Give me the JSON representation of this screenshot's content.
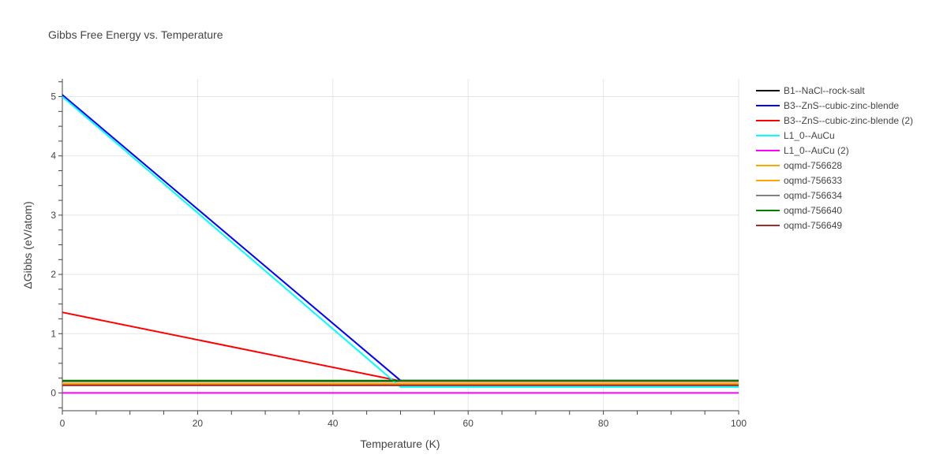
{
  "chart_data": {
    "type": "line",
    "title": "Gibbs Free Energy vs. Temperature",
    "xlabel": "Temperature (K)",
    "ylabel": "ΔGibbs (eV/atom)",
    "xlim": [
      0,
      100
    ],
    "ylim": [
      -0.3,
      5.3
    ],
    "xticks": [
      0,
      20,
      40,
      60,
      80,
      100
    ],
    "yticks": [
      0,
      1,
      2,
      3,
      4,
      5
    ],
    "grid": true,
    "legend_position": "right",
    "series": [
      {
        "name": "B1--NaCl--rock-salt",
        "color": "#000000",
        "x": [
          0,
          50,
          100
        ],
        "y": [
          0.2,
          0.2,
          0.2
        ]
      },
      {
        "name": "B3--ZnS--cubic-zinc-blende",
        "color": "#0000ff",
        "x": [
          0,
          50,
          100
        ],
        "y": [
          5.03,
          0.21,
          0.21
        ]
      },
      {
        "name": "B3--ZnS--cubic-zinc-blende (2)",
        "color": "#ff0000",
        "x": [
          0,
          50,
          100
        ],
        "y": [
          1.36,
          0.2,
          0.2
        ]
      },
      {
        "name": "L1_0--AuCu",
        "color": "#00ffff",
        "x": [
          0,
          50,
          100
        ],
        "y": [
          5.0,
          0.1,
          0.1
        ]
      },
      {
        "name": "L1_0--AuCu (2)",
        "color": "#ff00ff",
        "x": [
          0,
          100
        ],
        "y": [
          0.0,
          0.0
        ]
      },
      {
        "name": "oqmd-756628",
        "color": "#ffa500",
        "x": [
          0,
          100
        ],
        "y": [
          0.14,
          0.14
        ]
      },
      {
        "name": "oqmd-756633",
        "color": "#ffa500",
        "x": [
          0,
          100
        ],
        "y": [
          0.16,
          0.16
        ]
      },
      {
        "name": "oqmd-756634",
        "color": "#808080",
        "x": [
          0,
          100
        ],
        "y": [
          0.13,
          0.13
        ]
      },
      {
        "name": "oqmd-756640",
        "color": "#008000",
        "x": [
          0,
          100
        ],
        "y": [
          0.21,
          0.21
        ]
      },
      {
        "name": "oqmd-756649",
        "color": "#a52a2a",
        "x": [
          0,
          100
        ],
        "y": [
          0.13,
          0.13
        ]
      }
    ]
  }
}
